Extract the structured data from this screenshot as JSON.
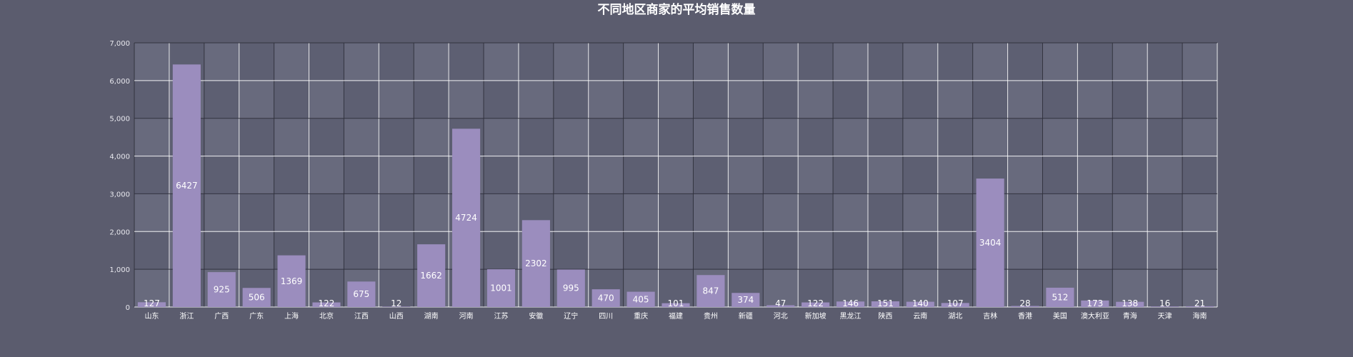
{
  "chart_data": {
    "type": "bar",
    "title": "不同地区商家的平均销售数量",
    "xlabel": "",
    "ylabel": "",
    "ylim": [
      0,
      7000
    ],
    "yticks": [
      "0",
      "1,000",
      "2,000",
      "3,000",
      "4,000",
      "5,000",
      "6,000",
      "7,000"
    ],
    "grid": true,
    "legend": "none",
    "categories": [
      "山东",
      "浙江",
      "广西",
      "广东",
      "上海",
      "北京",
      "江西",
      "山西",
      "湖南",
      "河南",
      "江苏",
      "安徽",
      "辽宁",
      "四川",
      "重庆",
      "福建",
      "贵州",
      "新疆",
      "河北",
      "新加坡",
      "黑龙江",
      "陕西",
      "云南",
      "湖北",
      "吉林",
      "香港",
      "美国",
      "澳大利亚",
      "青海",
      "天津",
      "海南"
    ],
    "values": [
      127,
      6427,
      925,
      506,
      1369,
      122,
      675,
      12,
      1662,
      4724,
      1001,
      2302,
      995,
      470,
      405,
      101,
      847,
      374,
      47,
      122,
      146,
      151,
      140,
      107,
      3404,
      28,
      512,
      173,
      138,
      16,
      21
    ],
    "colors": {
      "bar": "#9b8dbe",
      "background": "#5b5c6e",
      "band_light": "#686a7d",
      "band_dark": "#5d5f72",
      "grid_light": "#ffffff",
      "grid_dark": "#2e2f3a"
    }
  }
}
